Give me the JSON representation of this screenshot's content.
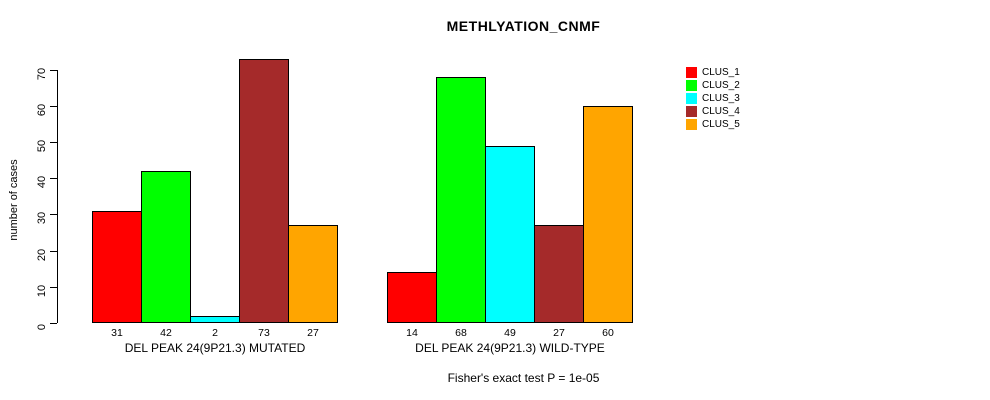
{
  "chart_data": {
    "type": "bar",
    "title": "METHLYATION_CNMF",
    "ylabel": "number of cases",
    "ylim": [
      0,
      70
    ],
    "yticks": [
      0,
      10,
      20,
      30,
      40,
      50,
      60,
      70
    ],
    "grid": false,
    "legend_position": "right",
    "series": [
      {
        "name": "CLUS_1",
        "color": "#FF0000"
      },
      {
        "name": "CLUS_2",
        "color": "#00FF00"
      },
      {
        "name": "CLUS_3",
        "color": "#00FFFF"
      },
      {
        "name": "CLUS_4",
        "color": "#A52A2A"
      },
      {
        "name": "CLUS_5",
        "color": "#FFA500"
      }
    ],
    "groups": [
      {
        "label": "DEL PEAK 24(9P21.3) MUTATED",
        "values": [
          31,
          42,
          2,
          73,
          27
        ]
      },
      {
        "label": "DEL PEAK 24(9P21.3) WILD-TYPE",
        "values": [
          14,
          68,
          49,
          27,
          60
        ]
      }
    ],
    "annotation": "Fisher's exact test P = 1e-05"
  }
}
